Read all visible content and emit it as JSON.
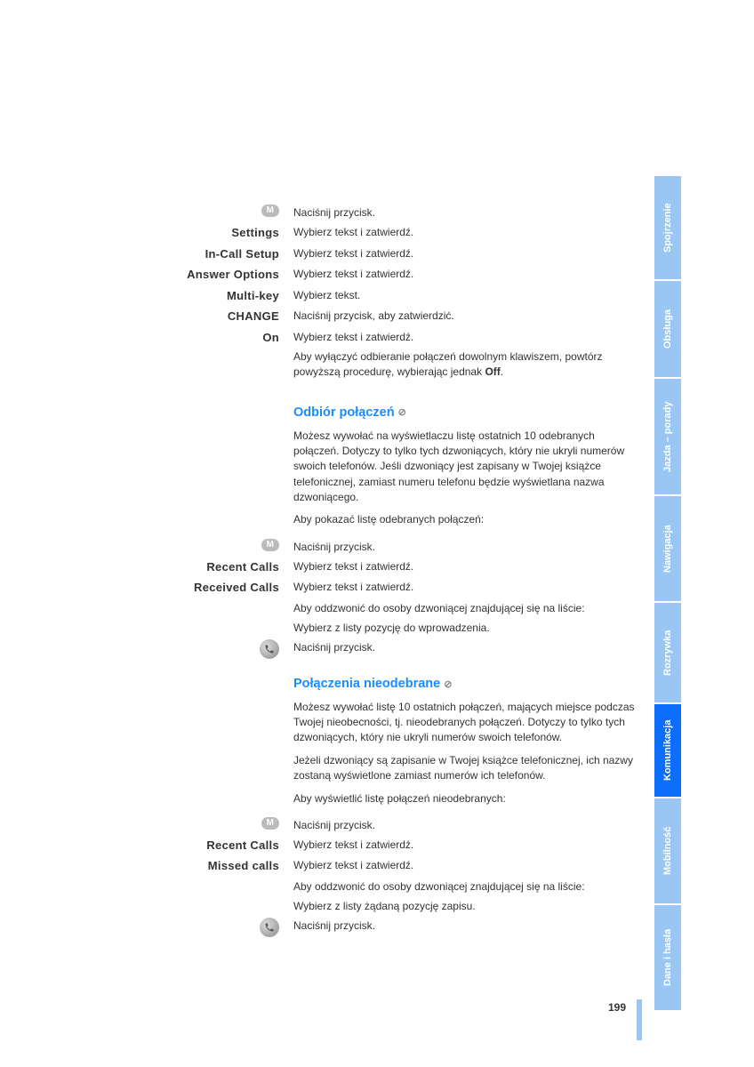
{
  "rows1": [
    {
      "label_type": "badge",
      "label": "M",
      "desc": "Naciśnij przycisk."
    },
    {
      "label_type": "text",
      "label": "Settings",
      "desc": "Wybierz tekst i zatwierdź."
    },
    {
      "label_type": "text",
      "label": "In-Call Setup",
      "desc": "Wybierz tekst i zatwierdź."
    },
    {
      "label_type": "text",
      "label": "Answer Options",
      "desc": "Wybierz tekst i zatwierdź."
    },
    {
      "label_type": "text",
      "label": "Multi-key",
      "desc": "Wybierz tekst."
    },
    {
      "label_type": "text",
      "label": "CHANGE",
      "desc": "Naciśnij przycisk, aby zatwierdzić."
    },
    {
      "label_type": "text",
      "label": "On",
      "desc": "Wybierz tekst i zatwierdź."
    }
  ],
  "para1": "Aby wyłączyć odbieranie połączeń dowolnym klawiszem, powtórz powyższą procedurę, wybierając jednak ",
  "para1_mono": "Off",
  "para1_end": ".",
  "heading2": "Odbiór połączeń",
  "para2": "Możesz wywołać na wyświetlaczu listę ostatnich 10 odebranych połączeń. Dotyczy to tylko tych dzwoniących, który nie ukryli numerów swoich telefonów. Jeśli dzwoniący jest zapisany w Twojej książce telefonicznej, zamiast numeru telefonu będzie wyświetlana nazwa dzwoniącego.",
  "para2b": "Aby pokazać listę odebranych połączeń:",
  "rows2": [
    {
      "label_type": "badge",
      "label": "M",
      "desc": "Naciśnij przycisk."
    },
    {
      "label_type": "text",
      "label": "Recent Calls",
      "desc": "Wybierz tekst i zatwierdź."
    },
    {
      "label_type": "text",
      "label": "Received Calls",
      "desc": "Wybierz tekst i zatwierdź."
    },
    {
      "label_type": "none",
      "label": "",
      "desc": "Aby oddzwonić do osoby dzwoniącej znajdującej się na liście:"
    },
    {
      "label_type": "none",
      "label": "",
      "desc": "Wybierz z listy pozycję do wprowadzenia."
    },
    {
      "label_type": "phone",
      "label": "",
      "desc": "Naciśnij przycisk."
    }
  ],
  "heading3": "Połączenia nieodebrane",
  "para3a": "Możesz wywołać listę 10 ostatnich połączeń, mających miejsce podczas Twojej nieobecności, tj. nieodebranych połączeń. Dotyczy to tylko tych dzwoniących, który nie ukryli numerów swoich telefonów.",
  "para3b": "Jeżeli dzwoniący są zapisanie w Twojej książce telefonicznej, ich nazwy zostaną wyświetlone zamiast numerów ich telefonów.",
  "para3c": "Aby wyświetlić listę połączeń nieodebranych:",
  "rows3": [
    {
      "label_type": "badge",
      "label": "M",
      "desc": "Naciśnij przycisk."
    },
    {
      "label_type": "text",
      "label": "Recent Calls",
      "desc": "Wybierz tekst i zatwierdź."
    },
    {
      "label_type": "text",
      "label": "Missed calls",
      "desc": "Wybierz tekst i zatwierdź."
    },
    {
      "label_type": "none",
      "label": "",
      "desc": "Aby oddzwonić do osoby dzwoniącej znajdującej się na liście:"
    },
    {
      "label_type": "none",
      "label": "",
      "desc": "Wybierz z listy żądaną pozycję zapisu."
    },
    {
      "label_type": "phone",
      "label": "",
      "desc": "Naciśnij przycisk."
    }
  ],
  "tabs": [
    {
      "label": "Spojrzenie",
      "color": "#9ac6f4",
      "height": 116
    },
    {
      "label": "Obsługa",
      "color": "#9ac6f4",
      "height": 108
    },
    {
      "label": "Jazda – porady",
      "color": "#9ac6f4",
      "height": 130
    },
    {
      "label": "Nawigacja",
      "color": "#9ac6f4",
      "height": 118
    },
    {
      "label": "Rozrywka",
      "color": "#9ac6f4",
      "height": 112
    },
    {
      "label": "Komunikacja",
      "color": "#0d6efd",
      "height": 104
    },
    {
      "label": "Mobilność",
      "color": "#9ac6f4",
      "height": 118
    },
    {
      "label": "Dane i hasła",
      "color": "#9ac6f4",
      "height": 118
    }
  ],
  "page_number": "199"
}
